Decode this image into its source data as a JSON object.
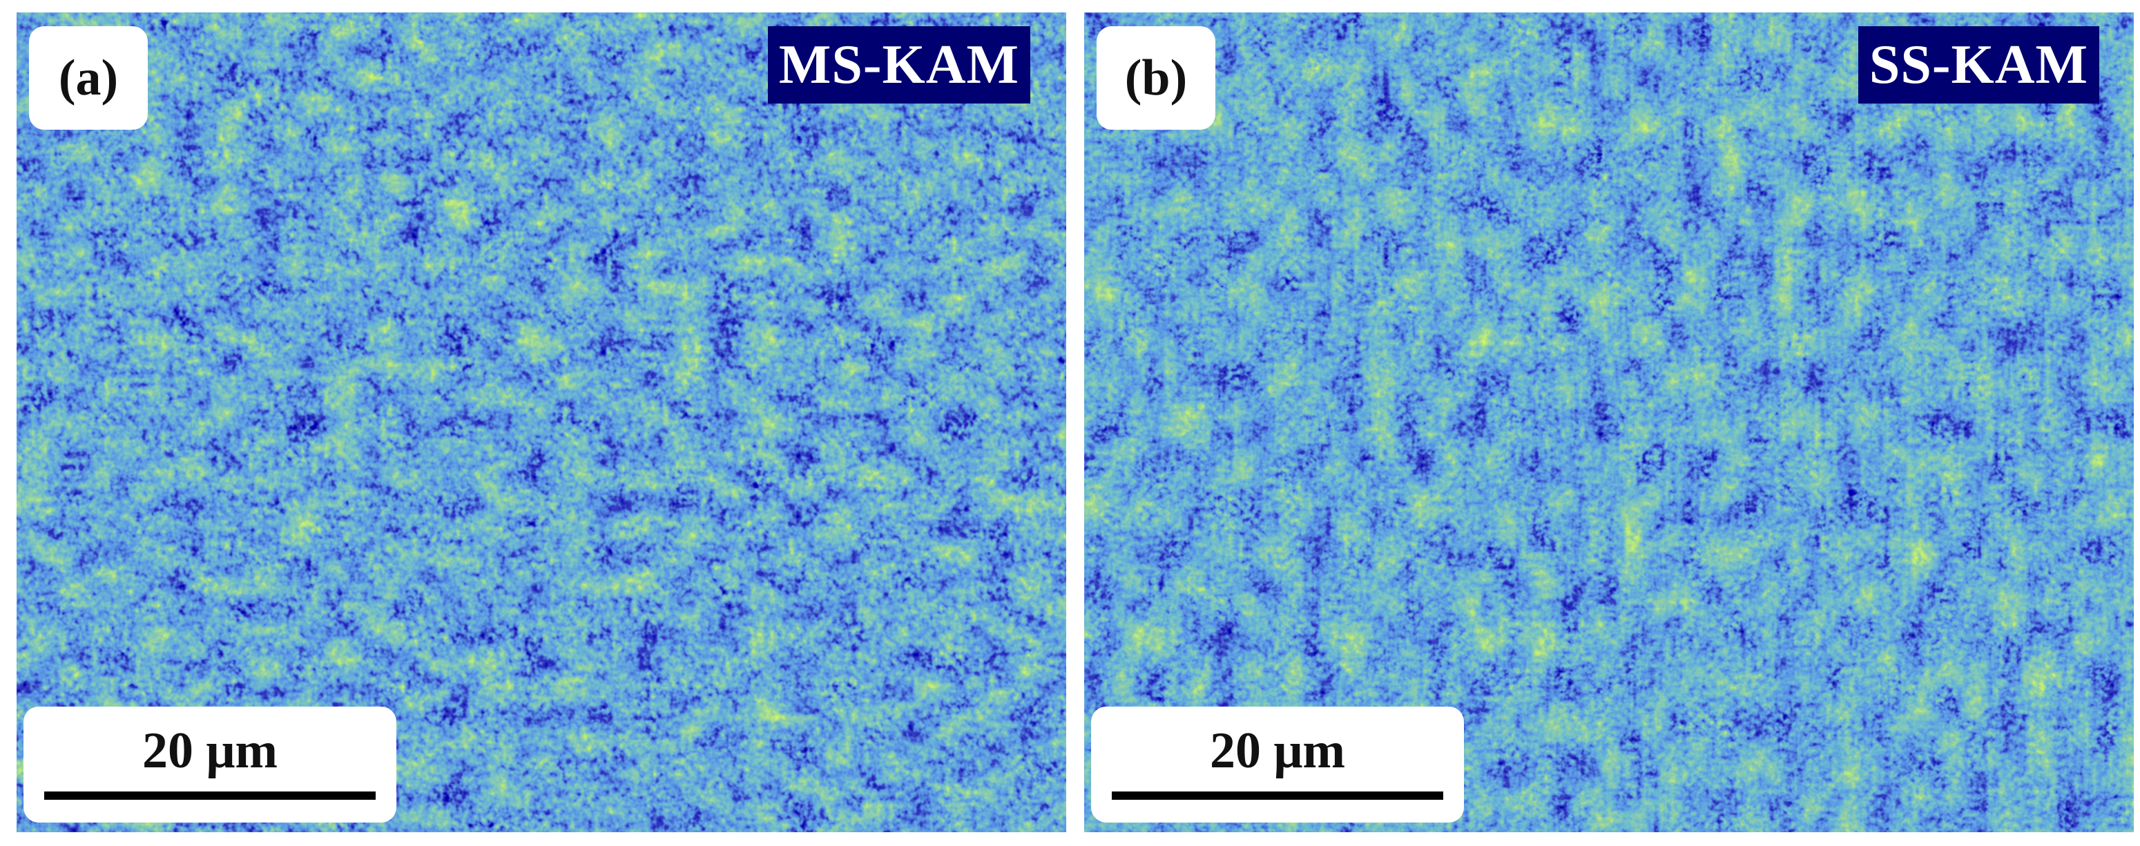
{
  "panels": [
    {
      "id": "a",
      "label": "(a)",
      "tag": "MS-KAM",
      "scalebar": "20 μm"
    },
    {
      "id": "b",
      "label": "(b)",
      "tag": "SS-KAM",
      "scalebar": "20 μm"
    }
  ],
  "colors": {
    "background": "#ffffff",
    "map_low": "#00008b",
    "map_mid_blue": "#1a5fd0",
    "map_mid_green": "#2ea07a",
    "map_high": "#c8ff2a",
    "tag_background": "#000070",
    "tag_text": "#ffffff",
    "label_box": "#ffffff"
  }
}
